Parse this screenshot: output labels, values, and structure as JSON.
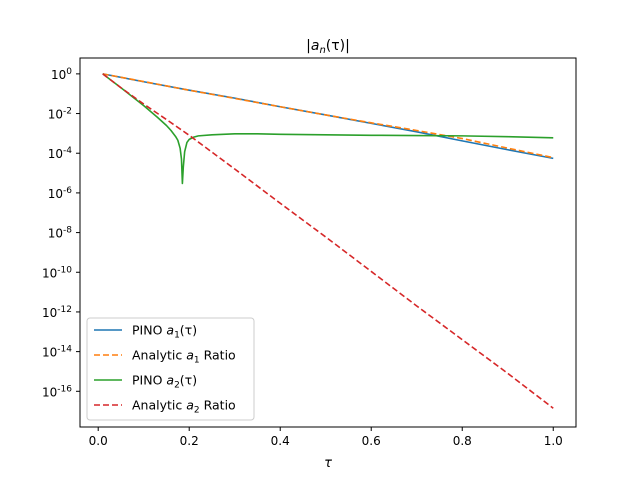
{
  "chart_data": {
    "type": "line",
    "title": "|a_n(τ)|",
    "title_parts": {
      "open": "|",
      "var": "a",
      "sub": "n",
      "arg": "(τ)|"
    },
    "xlabel": "τ",
    "ylabel": "",
    "xlim": [
      -0.04,
      1.05
    ],
    "ylim_log10": [
      -17.8,
      0.8
    ],
    "yscale": "log",
    "grid": false,
    "legend_position": "lower-left",
    "x_ticks": [
      0.0,
      0.2,
      0.4,
      0.6,
      0.8,
      1.0
    ],
    "x_tick_labels": [
      "0.0",
      "0.2",
      "0.4",
      "0.6",
      "0.8",
      "1.0"
    ],
    "y_tick_exponents": [
      0,
      -2,
      -4,
      -6,
      -8,
      -10,
      -12,
      -14,
      -16
    ],
    "y_tick_labels": [
      "10^0",
      "10^-2",
      "10^-4",
      "10^-6",
      "10^-8",
      "10^-10",
      "10^-12",
      "10^-14",
      "10^-16"
    ],
    "series": [
      {
        "name": "PINO a1(τ)",
        "legend": {
          "prefix": "PINO ",
          "var": "a",
          "sub": "1",
          "suffix": "(τ)"
        },
        "color": "#1f77b4",
        "dash": "solid",
        "x": [
          0.01,
          0.1,
          0.2,
          0.3,
          0.4,
          0.5,
          0.6,
          0.7,
          0.8,
          0.9,
          1.0
        ],
        "y": [
          1.0,
          0.4,
          0.15,
          0.06,
          0.022,
          0.0085,
          0.0032,
          0.0012,
          0.00042,
          0.00015,
          5.5e-05
        ]
      },
      {
        "name": "Analytic a1 Ratio",
        "legend": {
          "prefix": "Analytic ",
          "var": "a",
          "sub": "1",
          "suffix": " Ratio"
        },
        "color": "#ff7f0e",
        "dash": "dashed",
        "x": [
          0.01,
          0.1,
          0.2,
          0.3,
          0.4,
          0.5,
          0.6,
          0.7,
          0.8,
          0.9,
          1.0
        ],
        "y": [
          1.0,
          0.41,
          0.15,
          0.058,
          0.022,
          0.0085,
          0.0034,
          0.0014,
          0.00055,
          0.00018,
          6e-05
        ]
      },
      {
        "name": "PINO a2(τ)",
        "legend": {
          "prefix": "PINO ",
          "var": "a",
          "sub": "2",
          "suffix": "(τ)"
        },
        "color": "#2ca02c",
        "dash": "solid",
        "x": [
          0.01,
          0.05,
          0.1,
          0.13,
          0.15,
          0.16,
          0.17,
          0.175,
          0.18,
          0.183,
          0.185,
          0.187,
          0.19,
          0.195,
          0.2,
          0.21,
          0.22,
          0.25,
          0.3,
          0.35,
          0.4,
          0.5,
          0.6,
          0.7,
          0.8,
          0.9,
          1.0
        ],
        "y": [
          1.0,
          0.2,
          0.025,
          0.0065,
          0.0025,
          0.0014,
          0.0007,
          0.00045,
          0.00018,
          5e-05,
          3e-06,
          2e-05,
          0.00012,
          0.00035,
          0.0005,
          0.00065,
          0.00075,
          0.00085,
          0.00095,
          0.00095,
          0.0009,
          0.00085,
          0.0008,
          0.00078,
          0.00075,
          0.00068,
          0.0006
        ]
      },
      {
        "name": "Analytic a2 Ratio",
        "legend": {
          "prefix": "Analytic ",
          "var": "a",
          "sub": "2",
          "suffix": " Ratio"
        },
        "color": "#d62728",
        "dash": "dashed",
        "x": [
          0.01,
          0.05,
          0.1,
          0.15,
          0.2,
          0.3,
          0.4,
          0.5,
          0.6,
          0.7,
          0.8,
          0.9,
          1.0
        ],
        "y": [
          1.0,
          0.2,
          0.03,
          0.005,
          0.0008,
          1.6e-05,
          3e-07,
          6e-09,
          1.1e-10,
          2e-12,
          4e-14,
          8e-16,
          1.4e-17
        ]
      }
    ]
  }
}
